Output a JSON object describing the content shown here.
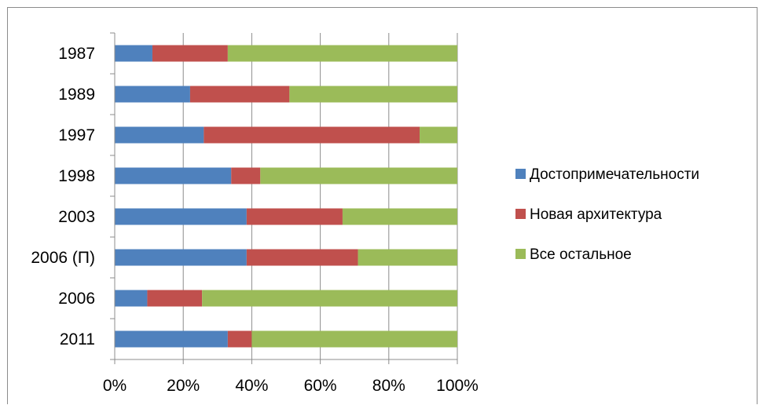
{
  "chart_data": {
    "type": "bar",
    "orientation": "horizontal",
    "stacked": "percent",
    "categories": [
      "1987",
      "1989",
      "1997",
      "1998",
      "2003",
      "2006 (П)",
      "2006",
      "2011"
    ],
    "series": [
      {
        "name": "Достопримечательности",
        "color": "#4f81bd",
        "values": [
          11,
          22,
          26,
          34,
          38.5,
          38.5,
          9.5,
          33
        ]
      },
      {
        "name": "Новая архитектура",
        "color": "#c0504d",
        "values": [
          22,
          29,
          63,
          8.5,
          28,
          32.5,
          16,
          7
        ]
      },
      {
        "name": "Все остальное",
        "color": "#9bbb59",
        "values": [
          67,
          49,
          11,
          57.5,
          33.5,
          29,
          74.5,
          60
        ]
      }
    ],
    "x_ticks": [
      "0%",
      "20%",
      "40%",
      "60%",
      "80%",
      "100%"
    ],
    "xlim": [
      0,
      100
    ],
    "grid": true,
    "legend_position": "right"
  }
}
